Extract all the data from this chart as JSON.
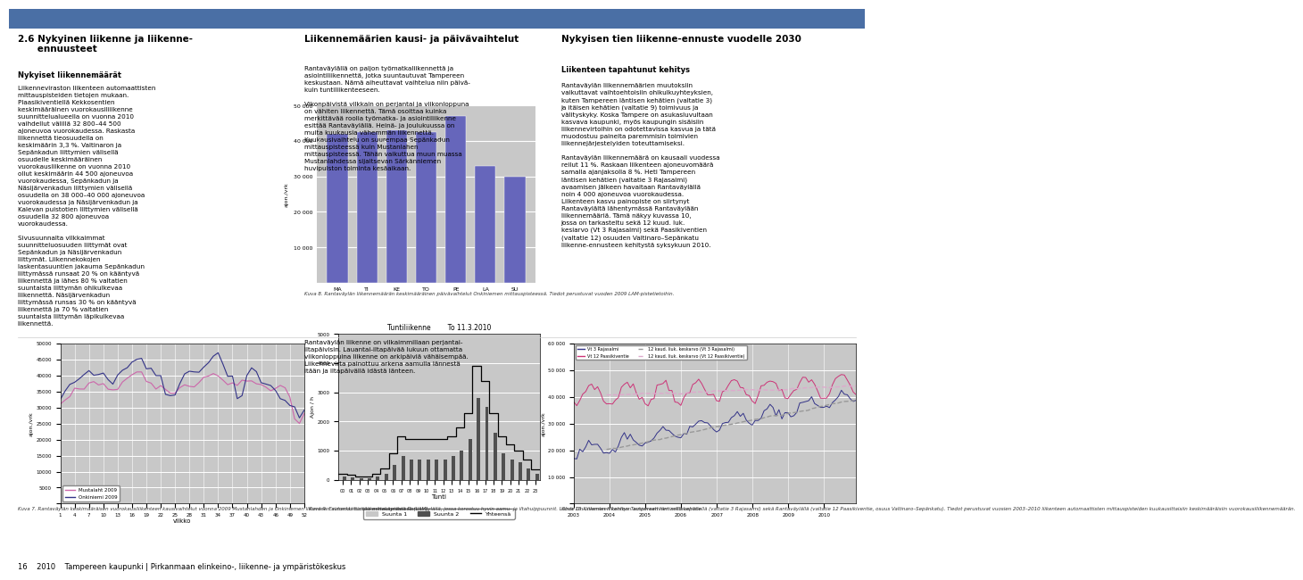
{
  "bg_color": "#ffffff",
  "chart_bg": "#c8c8c8",
  "fig8_days": [
    "MA",
    "TI",
    "KE",
    "TO",
    "PE",
    "LA",
    "SU"
  ],
  "fig8_values": [
    42000,
    42500,
    43000,
    42500,
    47000,
    33000,
    30000
  ],
  "fig8_bar_color": "#6666bb",
  "fig8_ylim": [
    0,
    50000
  ],
  "fig8_yticks": [
    0,
    10000,
    20000,
    30000,
    40000,
    50000
  ],
  "fig8_ylabel": "ajon./vrk",
  "fig8_caption": "Kuva 8. Rantaväylän liikennemäärän keskimääräinen päivävaihtelut Onkiniemen mittauspisteessä. Tiedot perustuvat vuoden 2009 LAM-pistetietoihin.",
  "fig7_ylabel": "ajon./vrk",
  "fig7_xlabel": "viikko",
  "fig7_ylim": [
    0,
    50000
  ],
  "fig7_yticks": [
    0,
    5000,
    10000,
    15000,
    20000,
    25000,
    30000,
    35000,
    40000,
    45000,
    50000
  ],
  "fig7_xticks": [
    1,
    4,
    7,
    10,
    13,
    16,
    19,
    22,
    25,
    28,
    31,
    34,
    37,
    40,
    43,
    46,
    49,
    52
  ],
  "fig7_legend": [
    "Mustalaht 2009",
    "Onkiniemi 2009"
  ],
  "fig7_line1_color": "#cc66aa",
  "fig7_line2_color": "#333388",
  "fig7_caption": "Kuva 7. Rantaväylän keskimääräisen vuorokausiliikenteen kausivaihtelut vuonna 2009 Mustanlahden ja Onkiniemen liikenteen automaattisissa mittauspisteissä (LAM).",
  "fig9_title": "Tuntiliikenne        To 11.3.2010",
  "fig9_ylabel": "Ajon / h",
  "fig9_xlabel": "Tunti",
  "fig9_ylim": [
    0,
    5000
  ],
  "fig9_yticks": [
    0,
    1000,
    2000,
    3000,
    4000,
    5000
  ],
  "fig9_bar1_color": "#c8c8c8",
  "fig9_bar2_color": "#505050",
  "fig9_line_color": "#000000",
  "fig9_legend": [
    "Suunta 1",
    "Suunta 2",
    "Yhteensä"
  ],
  "fig9_caption": "Kuva 9. Esimerkki tuntiliikennekäyrästä Rantaväylällä, jossa korostuu hyvin aamu- ja iltahuippuunnit. Lähde Onkiniemen liikenteen automaattinen mittauspiste.",
  "fig10_ylabel": "ajon./vrk",
  "fig10_ylim": [
    0,
    60000
  ],
  "fig10_yticks": [
    0,
    10000,
    20000,
    30000,
    40000,
    50000,
    60000
  ],
  "fig10_line1_color": "#333388",
  "fig10_line2_color": "#cc3377",
  "fig10_trend1_color": "#999999",
  "fig10_trend2_color": "#ddaacc",
  "fig10_legend": [
    "Vt 3 Rajasalmi",
    "Vt 12 Paasikiventie",
    "12 kaud. liuk. keskarvo (Vt 3 Rajasalmi)",
    "12 kaud. liuk. keskarvo (Vt 12 Paasikiventie)"
  ],
  "fig10_caption": "Kuva 10. Liikenteen kehitys Tampereen läntisellä kehätiellä (valtatie 3 Rajasalmi) sekä Rantaväylällä (valtatie 12 Paasikiventie, osuus Valtinaro–Sepänkatu). Tiedot perustuvat vuosien 2003–2010 liikenteen automaattisten mittauspisteiden kuukausittaisiin keskimääräisiin vuorokausiliikennemäärän.",
  "page_footer": "16    2010    Tampereen kaupunki | Pirkanmaan elinkeino-, liikenne- ja ympäristökeskus"
}
